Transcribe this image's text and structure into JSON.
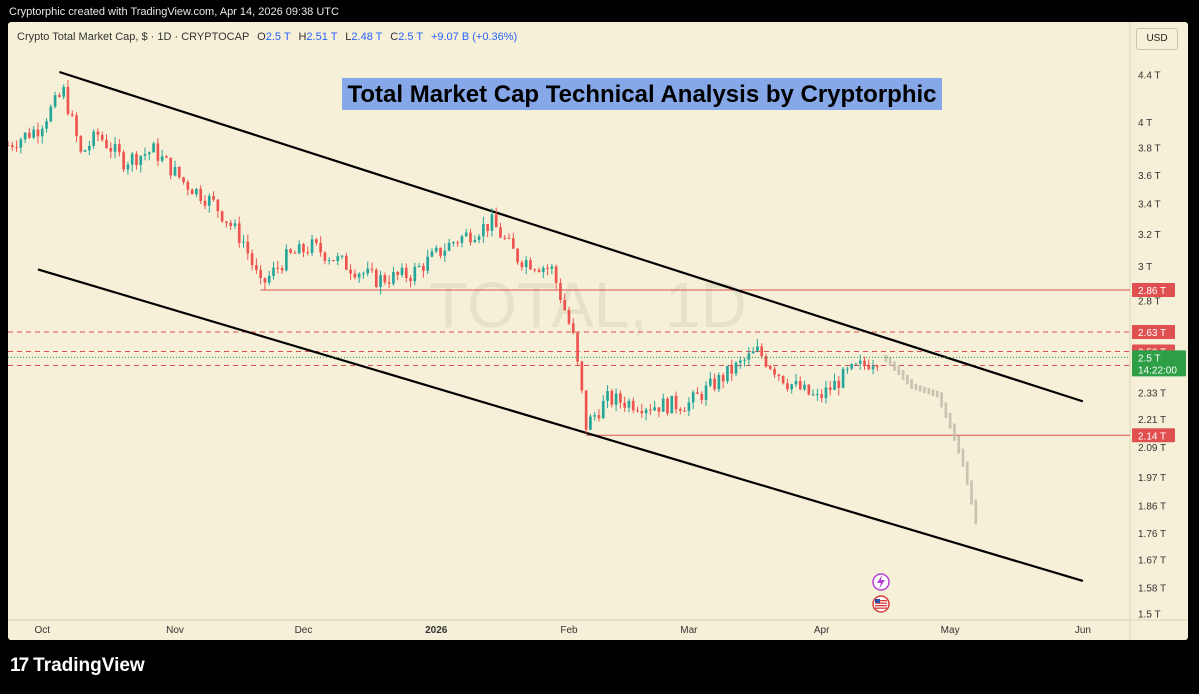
{
  "attribution": "Cryptorphic created with TradingView.com, Apr 14, 2026 09:38 UTC",
  "symbol": {
    "name": "Crypto Total Market Cap, $ · 1D · CRYPTOCAP",
    "o_label": "O",
    "o": "2.5 T",
    "h_label": "H",
    "h": "2.51 T",
    "l_label": "L",
    "l": "2.48 T",
    "c_label": "C",
    "c": "2.5 T",
    "change": "+9.07 B (+0.36%)"
  },
  "currency": "USD",
  "footer": {
    "brand": "TradingView"
  },
  "icons": [
    "lightning-icon",
    "us-flag-icon",
    "tradingview-logo-icon"
  ],
  "colors": {
    "up": "#26a69a",
    "down": "#ef5350",
    "resistance": "#e05050",
    "projection": "#c9c4b0",
    "title_bg": "#86a8e8",
    "last_price": "#2e9e47"
  },
  "chart_data": {
    "type": "candlestick",
    "title": "Total Market Cap Technical Analysis by Cryptorphic",
    "watermark": "TOTAL, 1D",
    "y_scale": "log",
    "y_ticks": [
      {
        "value": 4.4,
        "label": "4.4 T"
      },
      {
        "value": 4.0,
        "label": "4 T"
      },
      {
        "value": 3.8,
        "label": "3.8 T"
      },
      {
        "value": 3.6,
        "label": "3.6 T"
      },
      {
        "value": 3.4,
        "label": "3.4 T"
      },
      {
        "value": 3.2,
        "label": "3.2 T"
      },
      {
        "value": 3.0,
        "label": "3 T"
      },
      {
        "value": 2.8,
        "label": "2.8 T"
      },
      {
        "value": 2.33,
        "label": "2.33 T"
      },
      {
        "value": 2.21,
        "label": "2.21 T"
      },
      {
        "value": 2.09,
        "label": "2.09 T"
      },
      {
        "value": 1.97,
        "label": "1.97 T"
      },
      {
        "value": 1.86,
        "label": "1.86 T"
      },
      {
        "value": 1.76,
        "label": "1.76 T"
      },
      {
        "value": 1.67,
        "label": "1.67 T"
      },
      {
        "value": 1.58,
        "label": "1.58 T"
      },
      {
        "value": 1.5,
        "label": "1.5 T"
      }
    ],
    "x_ticks": [
      {
        "date": "2025-10-01",
        "label": "Oct"
      },
      {
        "date": "2025-11-01",
        "label": "Nov"
      },
      {
        "date": "2025-12-01",
        "label": "Dec"
      },
      {
        "date": "2026-01-01",
        "label": "2026"
      },
      {
        "date": "2026-02-01",
        "label": "Feb"
      },
      {
        "date": "2026-03-01",
        "label": "Mar"
      },
      {
        "date": "2026-04-01",
        "label": "Apr"
      },
      {
        "date": "2026-05-01",
        "label": "May"
      },
      {
        "date": "2026-06-01",
        "label": "Jun"
      }
    ],
    "x_range": [
      "2025-09-23",
      "2026-06-12"
    ],
    "y_range": [
      1.48,
      4.6
    ],
    "price_path": [
      {
        "date": "2025-09-23",
        "close": 3.82
      },
      {
        "date": "2025-09-30",
        "close": 3.95
      },
      {
        "date": "2025-10-06",
        "close": 4.25
      },
      {
        "date": "2025-10-10",
        "close": 3.75
      },
      {
        "date": "2025-10-14",
        "close": 3.9
      },
      {
        "date": "2025-10-20",
        "close": 3.7
      },
      {
        "date": "2025-10-27",
        "close": 3.78
      },
      {
        "date": "2025-11-03",
        "close": 3.55
      },
      {
        "date": "2025-11-10",
        "close": 3.4
      },
      {
        "date": "2025-11-17",
        "close": 3.15
      },
      {
        "date": "2025-11-21",
        "close": 2.88
      },
      {
        "date": "2025-11-27",
        "close": 3.05
      },
      {
        "date": "2025-12-03",
        "close": 3.12
      },
      {
        "date": "2025-12-10",
        "close": 3.02
      },
      {
        "date": "2025-12-18",
        "close": 2.92
      },
      {
        "date": "2025-12-26",
        "close": 2.95
      },
      {
        "date": "2026-01-05",
        "close": 3.15
      },
      {
        "date": "2026-01-14",
        "close": 3.27
      },
      {
        "date": "2026-01-20",
        "close": 3.05
      },
      {
        "date": "2026-01-28",
        "close": 2.98
      },
      {
        "date": "2026-02-02",
        "close": 2.6
      },
      {
        "date": "2026-02-05",
        "close": 2.18
      },
      {
        "date": "2026-02-10",
        "close": 2.3
      },
      {
        "date": "2026-02-20",
        "close": 2.27
      },
      {
        "date": "2026-03-01",
        "close": 2.28
      },
      {
        "date": "2026-03-10",
        "close": 2.42
      },
      {
        "date": "2026-03-17",
        "close": 2.53
      },
      {
        "date": "2026-03-24",
        "close": 2.38
      },
      {
        "date": "2026-03-31",
        "close": 2.3
      },
      {
        "date": "2026-04-07",
        "close": 2.42
      },
      {
        "date": "2026-04-14",
        "close": 2.5
      }
    ],
    "projection": [
      {
        "date": "2026-04-16",
        "close": 2.49
      },
      {
        "date": "2026-04-22",
        "close": 2.36
      },
      {
        "date": "2026-04-28",
        "close": 2.32
      },
      {
        "date": "2026-05-01",
        "close": 2.18
      },
      {
        "date": "2026-05-04",
        "close": 2.02
      },
      {
        "date": "2026-05-07",
        "close": 1.8
      },
      {
        "date": "2026-05-08",
        "close": 1.68
      }
    ],
    "horizontal_levels": [
      {
        "value": 2.86,
        "label": "2.86 T",
        "style": "solid",
        "from": "2025-11-21"
      },
      {
        "value": 2.63,
        "label": "2.63 T",
        "style": "dashed",
        "from": "2025-09-23"
      },
      {
        "value": 2.53,
        "label": "2.53 T",
        "style": "dashed",
        "from": "2025-09-23"
      },
      {
        "value": 2.46,
        "label": "2.46 T",
        "style": "dashed",
        "from": "2025-09-23"
      },
      {
        "value": 2.14,
        "label": "2.14 T",
        "style": "solid",
        "from": "2026-02-05"
      }
    ],
    "last_price": {
      "value": 2.5,
      "label": "2.5 T",
      "countdown": "14:22:00"
    },
    "channel": {
      "upper": [
        {
          "date": "2025-10-05",
          "value": 4.42
        },
        {
          "date": "2026-06-01",
          "value": 2.29
        }
      ],
      "lower": [
        {
          "date": "2025-09-30",
          "value": 2.98
        },
        {
          "date": "2026-06-01",
          "value": 1.6
        }
      ]
    }
  }
}
